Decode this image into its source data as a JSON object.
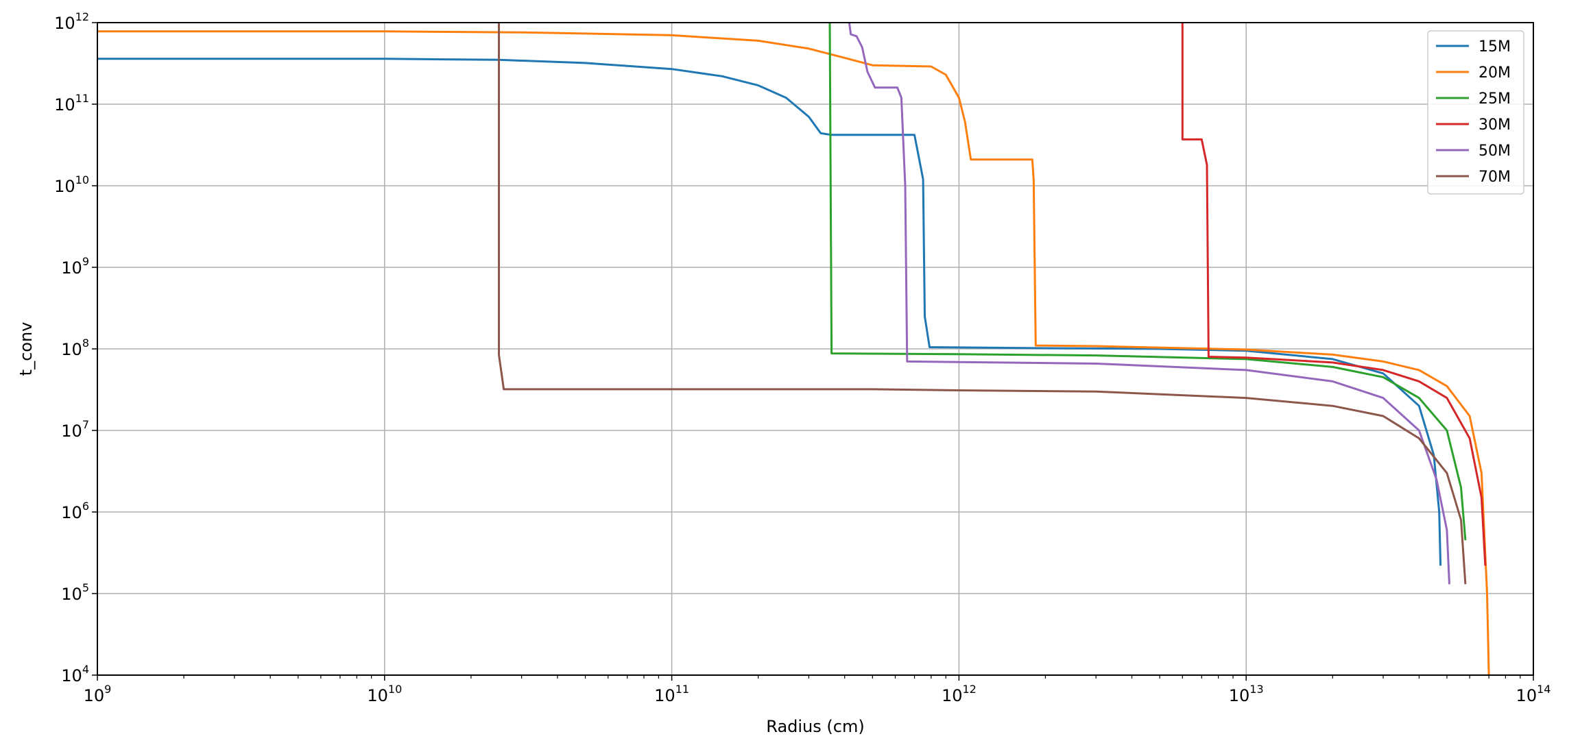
{
  "chart_data": {
    "type": "line",
    "title": "",
    "xlabel": "Radius (cm)",
    "ylabel": "t_conv",
    "xscale": "log",
    "yscale": "log",
    "xlim": [
      1000000000.0,
      100000000000000.0
    ],
    "ylim": [
      10000.0,
      1000000000000.0
    ],
    "grid": true,
    "legend_position": "top-right",
    "x_ticks": [
      {
        "base": "10",
        "exp": "9",
        "value": 1000000000.0
      },
      {
        "base": "10",
        "exp": "10",
        "value": 10000000000.0
      },
      {
        "base": "10",
        "exp": "11",
        "value": 100000000000.0
      },
      {
        "base": "10",
        "exp": "12",
        "value": 1000000000000.0
      },
      {
        "base": "10",
        "exp": "13",
        "value": 10000000000000.0
      },
      {
        "base": "10",
        "exp": "14",
        "value": 100000000000000.0
      }
    ],
    "y_ticks": [
      {
        "base": "10",
        "exp": "4",
        "value": 10000.0
      },
      {
        "base": "10",
        "exp": "5",
        "value": 100000.0
      },
      {
        "base": "10",
        "exp": "6",
        "value": 1000000.0
      },
      {
        "base": "10",
        "exp": "7",
        "value": 10000000.0
      },
      {
        "base": "10",
        "exp": "8",
        "value": 100000000.0
      },
      {
        "base": "10",
        "exp": "9",
        "value": 1000000000.0
      },
      {
        "base": "10",
        "exp": "10",
        "value": 10000000000.0
      },
      {
        "base": "10",
        "exp": "11",
        "value": 100000000000.0
      },
      {
        "base": "10",
        "exp": "12",
        "value": 1000000000000.0
      }
    ],
    "series": [
      {
        "name": "15M",
        "color": "#1f77b4",
        "points": [
          [
            1000000000.0,
            360000000000.0
          ],
          [
            10000000000.0,
            360000000000.0
          ],
          [
            25000000000.0,
            350000000000.0
          ],
          [
            50000000000.0,
            320000000000.0
          ],
          [
            100000000000.0,
            270000000000.0
          ],
          [
            150000000000.0,
            220000000000.0
          ],
          [
            200000000000.0,
            170000000000.0
          ],
          [
            250000000000.0,
            120000000000.0
          ],
          [
            300000000000.0,
            70000000000.0
          ],
          [
            330000000000.0,
            44000000000.0
          ],
          [
            360000000000.0,
            42000000000.0
          ],
          [
            700000000000.0,
            42000000000.0
          ],
          [
            750000000000.0,
            12000000000.0
          ],
          [
            760000000000.0,
            250000000.0
          ],
          [
            790000000000.0,
            105000000.0
          ],
          [
            2000000000000.0,
            102000000.0
          ],
          [
            5000000000000.0,
            100000000.0
          ],
          [
            10000000000000.0,
            95000000.0
          ],
          [
            20000000000000.0,
            75000000.0
          ],
          [
            30000000000000.0,
            50000000.0
          ],
          [
            40000000000000.0,
            20000000.0
          ],
          [
            45000000000000.0,
            5000000.0
          ],
          [
            47000000000000.0,
            1000000.0
          ],
          [
            47500000000000.0,
            220000.0
          ]
        ]
      },
      {
        "name": "20M",
        "color": "#ff7f0e",
        "points": [
          [
            1000000000.0,
            780000000000.0
          ],
          [
            10000000000.0,
            780000000000.0
          ],
          [
            30000000000.0,
            760000000000.0
          ],
          [
            100000000000.0,
            700000000000.0
          ],
          [
            200000000000.0,
            600000000000.0
          ],
          [
            300000000000.0,
            480000000000.0
          ],
          [
            400000000000.0,
            370000000000.0
          ],
          [
            500000000000.0,
            300000000000.0
          ],
          [
            800000000000.0,
            290000000000.0
          ],
          [
            900000000000.0,
            230000000000.0
          ],
          [
            1000000000000.0,
            120000000000.0
          ],
          [
            1050000000000.0,
            60000000000.0
          ],
          [
            1100000000000.0,
            21000000000.0
          ],
          [
            1800000000000.0,
            21000000000.0
          ],
          [
            1820000000000.0,
            12000000000.0
          ],
          [
            1850000000000.0,
            110000000.0
          ],
          [
            3000000000000.0,
            108000000.0
          ],
          [
            10000000000000.0,
            98000000.0
          ],
          [
            20000000000000.0,
            85000000.0
          ],
          [
            30000000000000.0,
            70000000.0
          ],
          [
            40000000000000.0,
            55000000.0
          ],
          [
            50000000000000.0,
            35000000.0
          ],
          [
            60000000000000.0,
            15000000.0
          ],
          [
            66000000000000.0,
            3000000.0
          ],
          [
            69000000000000.0,
            100000.0
          ],
          [
            70000000000000.0,
            10000.0
          ]
        ]
      },
      {
        "name": "25M",
        "color": "#2ca02c",
        "points": [
          [
            355000000000.0,
            1000000000000.0
          ],
          [
            360000000000.0,
            88000000.0
          ],
          [
            1000000000000.0,
            86000000.0
          ],
          [
            3000000000000.0,
            83000000.0
          ],
          [
            10000000000000.0,
            75000000.0
          ],
          [
            20000000000000.0,
            60000000.0
          ],
          [
            30000000000000.0,
            45000000.0
          ],
          [
            40000000000000.0,
            25000000.0
          ],
          [
            50000000000000.0,
            10000000.0
          ],
          [
            56000000000000.0,
            2000000.0
          ],
          [
            58000000000000.0,
            450000.0
          ]
        ]
      },
      {
        "name": "30M",
        "color": "#d62728",
        "points": [
          [
            6000000000000.0,
            1000000000000.0
          ],
          [
            6000000000000.0,
            37000000000.0
          ],
          [
            7000000000000.0,
            37000000000.0
          ],
          [
            7300000000000.0,
            18000000000.0
          ],
          [
            7400000000000.0,
            80000000.0
          ],
          [
            10000000000000.0,
            78000000.0
          ],
          [
            20000000000000.0,
            68000000.0
          ],
          [
            30000000000000.0,
            55000000.0
          ],
          [
            40000000000000.0,
            40000000.0
          ],
          [
            50000000000000.0,
            25000000.0
          ],
          [
            60000000000000.0,
            8000000.0
          ],
          [
            66000000000000.0,
            1500000.0
          ],
          [
            68000000000000.0,
            220000.0
          ]
        ]
      },
      {
        "name": "50M",
        "color": "#9467bd",
        "points": [
          [
            415000000000.0,
            1000000000000.0
          ],
          [
            420000000000.0,
            720000000000.0
          ],
          [
            440000000000.0,
            680000000000.0
          ],
          [
            460000000000.0,
            500000000000.0
          ],
          [
            480000000000.0,
            250000000000.0
          ],
          [
            510000000000.0,
            160000000000.0
          ],
          [
            610000000000.0,
            160000000000.0
          ],
          [
            630000000000.0,
            120000000000.0
          ],
          [
            650000000000.0,
            10000000000.0
          ],
          [
            660000000000.0,
            70000000.0
          ],
          [
            1000000000000.0,
            69000000.0
          ],
          [
            3000000000000.0,
            66000000.0
          ],
          [
            10000000000000.0,
            55000000.0
          ],
          [
            20000000000000.0,
            40000000.0
          ],
          [
            30000000000000.0,
            25000000.0
          ],
          [
            40000000000000.0,
            10000000.0
          ],
          [
            46000000000000.0,
            2500000.0
          ],
          [
            50000000000000.0,
            600000.0
          ],
          [
            51000000000000.0,
            130000.0
          ]
        ]
      },
      {
        "name": "70M",
        "color": "#8c564b",
        "points": [
          [
            25000000000.0,
            1000000000000.0
          ],
          [
            25000000000.0,
            85000000.0
          ],
          [
            26000000000.0,
            32000000.0
          ],
          [
            100000000000.0,
            32000000.0
          ],
          [
            500000000000.0,
            32000000.0
          ],
          [
            1000000000000.0,
            31000000.0
          ],
          [
            3000000000000.0,
            30000000.0
          ],
          [
            10000000000000.0,
            25000000.0
          ],
          [
            20000000000000.0,
            20000000.0
          ],
          [
            30000000000000.0,
            15000000.0
          ],
          [
            40000000000000.0,
            8000000.0
          ],
          [
            50000000000000.0,
            3000000.0
          ],
          [
            56000000000000.0,
            800000.0
          ],
          [
            58000000000000.0,
            130000.0
          ]
        ]
      }
    ]
  }
}
